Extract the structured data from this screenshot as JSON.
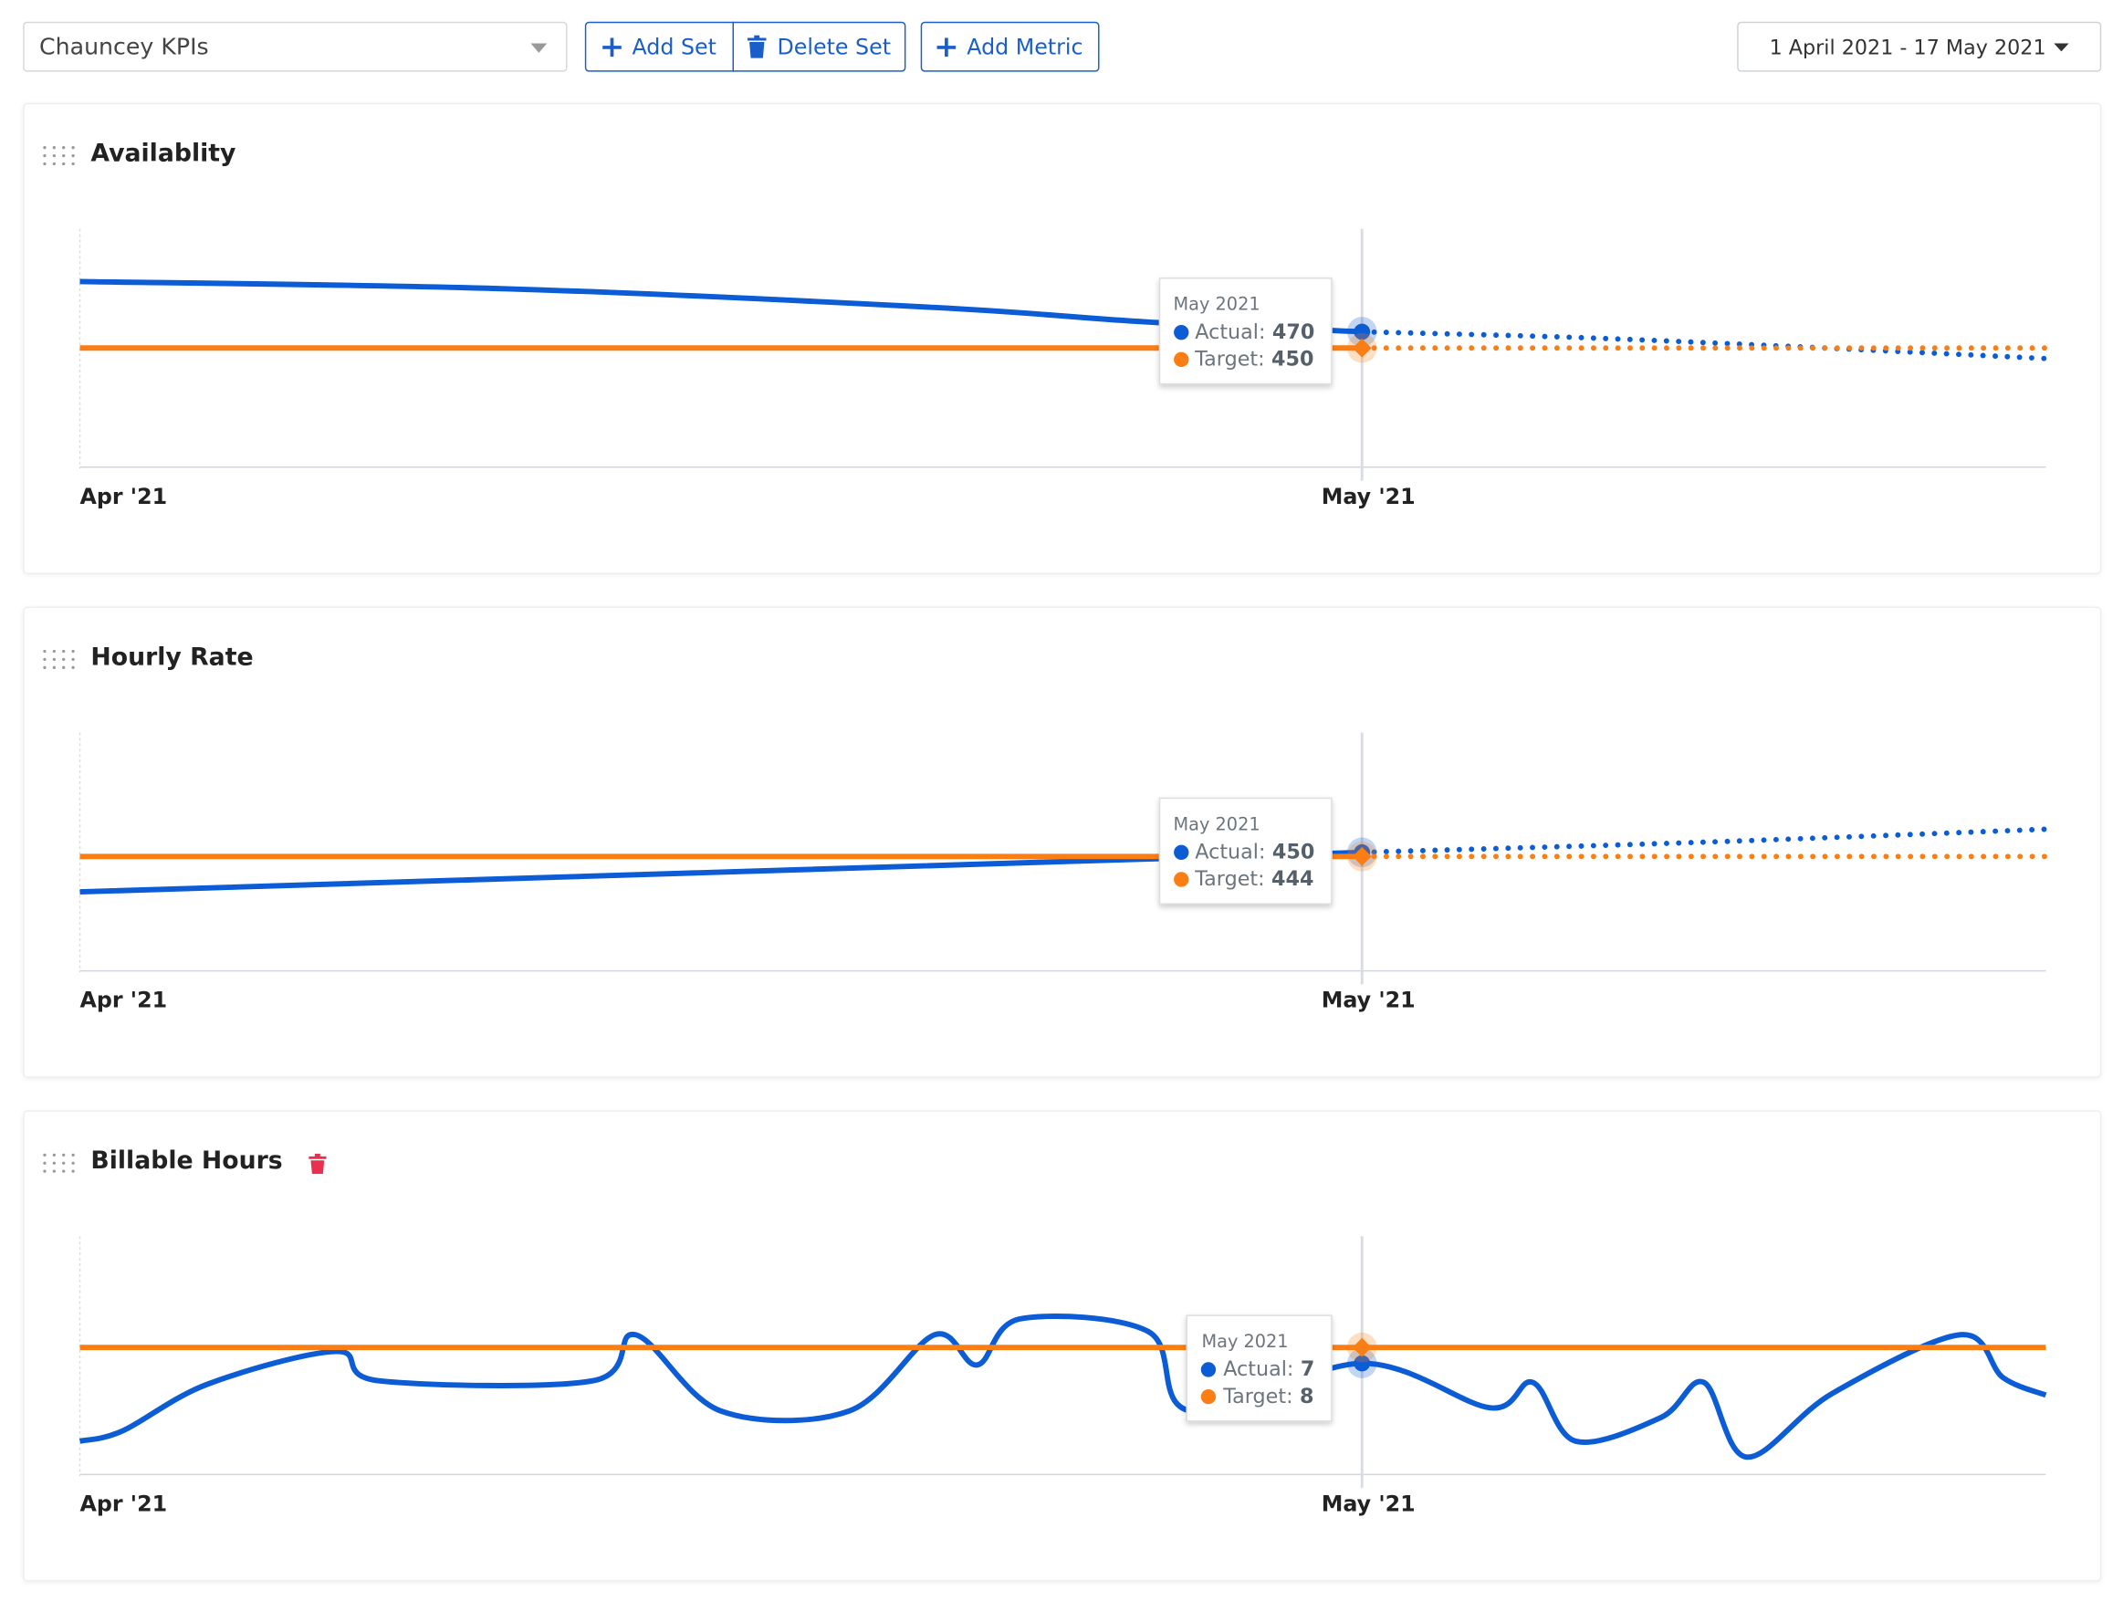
{
  "toolbar": {
    "set_select": "Chauncey KPIs",
    "buttons": [
      "Add Set",
      "Delete Set",
      "Add Metric"
    ],
    "date_range": "1 April 2021 - 17 May 2021"
  },
  "chart_data": [
    {
      "type": "line",
      "title": "Availablity",
      "delete_icon": false,
      "x": [
        "2021-04-01",
        "2021-04-11",
        "2021-04-21",
        "2021-04-26",
        "2021-05-01",
        "2021-05-06",
        "2021-05-11",
        "2021-05-17"
      ],
      "xlim": [
        "2021-04-01",
        "2021-05-17"
      ],
      "xticks": [
        {
          "value": "2021-04-01",
          "label": "Apr '21"
        },
        {
          "value": "2021-05-01",
          "label": "May '21"
        }
      ],
      "ylim": [
        303,
        597
      ],
      "forecast_from": "2021-05-01",
      "series": [
        {
          "name": "Actual",
          "color": "#0b5cd5",
          "values": [
            532,
            523,
            500,
            482,
            470,
            463,
            452,
            437
          ]
        },
        {
          "name": "Target",
          "color": "#fb7e14",
          "values": [
            450,
            450,
            450,
            450,
            450,
            450,
            450,
            450
          ]
        }
      ],
      "tooltip": {
        "title": "May 2021",
        "items": [
          {
            "label": "Actual:",
            "value": 470
          },
          {
            "label": "Target:",
            "value": 450
          }
        ]
      }
    },
    {
      "type": "line",
      "title": "Hourly Rate",
      "delete_icon": false,
      "x": [
        "2021-04-01",
        "2021-05-01",
        "2021-05-09",
        "2021-05-17"
      ],
      "xlim": [
        "2021-04-01",
        "2021-05-17"
      ],
      "xticks": [
        {
          "value": "2021-04-01",
          "label": "Apr '21"
        },
        {
          "value": "2021-05-01",
          "label": "May '21"
        }
      ],
      "ylim": [
        276,
        626
      ],
      "forecast_from": "2021-05-01",
      "series": [
        {
          "name": "Actual",
          "color": "#0b5cd5",
          "values": [
            392,
            450,
            465,
            484
          ]
        },
        {
          "name": "Target",
          "color": "#fb7e14",
          "values": [
            444,
            444,
            444,
            444
          ]
        }
      ],
      "tooltip": {
        "title": "May 2021",
        "items": [
          {
            "label": "Actual:",
            "value": 450
          },
          {
            "label": "Target:",
            "value": 444
          }
        ]
      }
    },
    {
      "type": "line",
      "title": "Billable Hours",
      "delete_icon": true,
      "x": [
        "2021-04-01",
        "2021-04-02",
        "2021-04-04",
        "2021-04-07",
        "2021-04-08",
        "2021-04-13",
        "2021-04-14",
        "2021-04-16",
        "2021-04-19",
        "2021-04-21",
        "2021-04-22",
        "2021-04-23",
        "2021-04-26",
        "2021-04-27",
        "2021-05-01",
        "2021-05-04",
        "2021-05-05",
        "2021-05-06",
        "2021-05-08",
        "2021-05-09",
        "2021-05-10",
        "2021-05-12",
        "2021-05-15",
        "2021-05-16",
        "2021-05-17"
      ],
      "xlim": [
        "2021-04-01",
        "2021-05-17"
      ],
      "xticks": [
        {
          "value": "2021-04-01",
          "label": "Apr '21"
        },
        {
          "value": "2021-05-01",
          "label": "May '21"
        }
      ],
      "ylim": [
        0,
        15
      ],
      "forecast_from": null,
      "series": [
        {
          "name": "Actual",
          "color": "#0b5cd5",
          "values": [
            2.1,
            2.75,
            5.7,
            7.75,
            5.9,
            5.9,
            8.8,
            4,
            4,
            8.8,
            6.9,
            9.8,
            9,
            4,
            7,
            4.2,
            5.8,
            2.1,
            3.6,
            5.8,
            1.1,
            5.1,
            8.8,
            6.1,
            5
          ]
        },
        {
          "name": "Target",
          "color": "#fb7e14",
          "values": [
            8,
            8,
            8,
            8,
            8,
            8,
            8,
            8,
            8,
            8,
            8,
            8,
            8,
            8,
            8,
            8,
            8,
            8,
            8,
            8,
            8,
            8,
            8,
            8,
            8
          ]
        }
      ],
      "tooltip": {
        "title": "May 2021",
        "items": [
          {
            "label": "Actual:",
            "value": 7
          },
          {
            "label": "Target:",
            "value": 8
          }
        ]
      }
    }
  ]
}
